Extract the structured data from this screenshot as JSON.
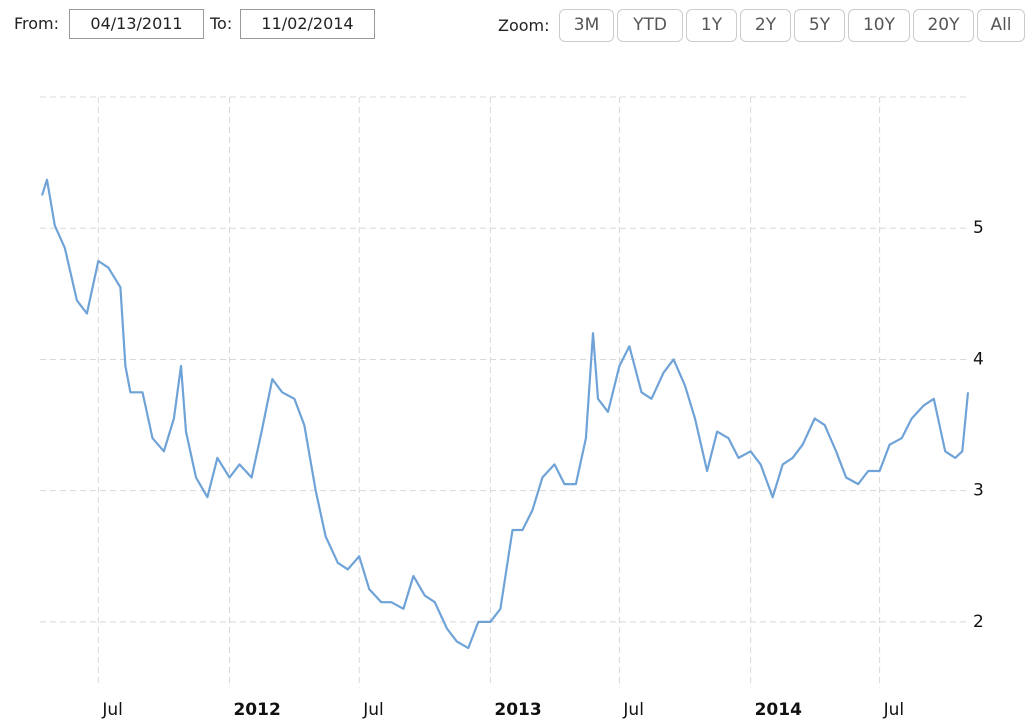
{
  "range_selector": {
    "from_label": "From:",
    "from": "04/13/2011",
    "to_label": "To:",
    "to": "11/02/2014",
    "zoom_label": "Zoom:",
    "zoom_buttons": [
      "3M",
      "YTD",
      "1Y",
      "2Y",
      "5Y",
      "10Y",
      "20Y",
      "All"
    ]
  },
  "chart_data": {
    "type": "line",
    "color": "#6fa3d8",
    "grid": true,
    "x": [
      "2011-04-13",
      "2011-04-20",
      "2011-05-01",
      "2011-05-15",
      "2011-06-01",
      "2011-06-15",
      "2011-07-01",
      "2011-07-15",
      "2011-08-01",
      "2011-08-08",
      "2011-08-15",
      "2011-09-01",
      "2011-09-15",
      "2011-10-01",
      "2011-10-15",
      "2011-10-25",
      "2011-11-01",
      "2011-11-15",
      "2011-12-01",
      "2011-12-15",
      "2012-01-01",
      "2012-01-15",
      "2012-02-01",
      "2012-02-15",
      "2012-03-01",
      "2012-03-15",
      "2012-04-01",
      "2012-04-15",
      "2012-05-01",
      "2012-05-15",
      "2012-06-01",
      "2012-06-15",
      "2012-07-01",
      "2012-07-15",
      "2012-08-01",
      "2012-08-15",
      "2012-09-01",
      "2012-09-15",
      "2012-10-01",
      "2012-10-15",
      "2012-11-01",
      "2012-11-15",
      "2012-12-01",
      "2012-12-15",
      "2013-01-01",
      "2013-01-15",
      "2013-02-01",
      "2013-02-15",
      "2013-03-01",
      "2013-03-15",
      "2013-04-01",
      "2013-04-15",
      "2013-05-01",
      "2013-05-15",
      "2013-05-25",
      "2013-06-01",
      "2013-06-15",
      "2013-07-01",
      "2013-07-15",
      "2013-08-01",
      "2013-08-15",
      "2013-09-01",
      "2013-09-15",
      "2013-10-01",
      "2013-10-15",
      "2013-11-01",
      "2013-11-15",
      "2013-12-01",
      "2013-12-15",
      "2014-01-01",
      "2014-01-15",
      "2014-02-01",
      "2014-02-15",
      "2014-03-01",
      "2014-03-15",
      "2014-04-01",
      "2014-04-15",
      "2014-05-01",
      "2014-05-15",
      "2014-06-01",
      "2014-06-15",
      "2014-07-01",
      "2014-07-15",
      "2014-08-01",
      "2014-08-15",
      "2014-09-01",
      "2014-09-15",
      "2014-10-01",
      "2014-10-15",
      "2014-10-25",
      "2014-11-02"
    ],
    "values": [
      5.25,
      5.37,
      5.02,
      4.85,
      4.45,
      4.35,
      4.75,
      4.7,
      4.55,
      3.95,
      3.75,
      3.75,
      3.4,
      3.3,
      3.55,
      3.95,
      3.45,
      3.1,
      2.95,
      3.25,
      3.1,
      3.2,
      3.1,
      3.45,
      3.85,
      3.75,
      3.7,
      3.5,
      3.0,
      2.65,
      2.45,
      2.4,
      2.5,
      2.25,
      2.15,
      2.15,
      2.1,
      2.35,
      2.2,
      2.15,
      1.95,
      1.85,
      1.8,
      2.0,
      2.0,
      2.1,
      2.7,
      2.7,
      2.85,
      3.1,
      3.2,
      3.05,
      3.05,
      3.4,
      4.2,
      3.7,
      3.6,
      3.95,
      4.1,
      3.75,
      3.7,
      3.9,
      4.0,
      3.8,
      3.55,
      3.15,
      3.45,
      3.4,
      3.25,
      3.3,
      3.2,
      2.95,
      3.2,
      3.25,
      3.35,
      3.55,
      3.5,
      3.3,
      3.1,
      3.05,
      3.15,
      3.15,
      3.35,
      3.4,
      3.55,
      3.65,
      3.7,
      3.3,
      3.25,
      3.3,
      3.75
    ],
    "xlim": [
      "2011-04-13",
      "2014-11-02"
    ],
    "xticks": [
      {
        "value": "2011-07-01",
        "label": "Jul"
      },
      {
        "value": "2012-01-01",
        "label": "2012"
      },
      {
        "value": "2012-07-01",
        "label": "Jul"
      },
      {
        "value": "2013-01-01",
        "label": "2013"
      },
      {
        "value": "2013-07-01",
        "label": "Jul"
      },
      {
        "value": "2014-01-01",
        "label": "2014"
      },
      {
        "value": "2014-07-01",
        "label": "Jul"
      }
    ],
    "ylim": [
      1.5,
      6
    ],
    "yticks": [
      2,
      3,
      4,
      5
    ]
  }
}
